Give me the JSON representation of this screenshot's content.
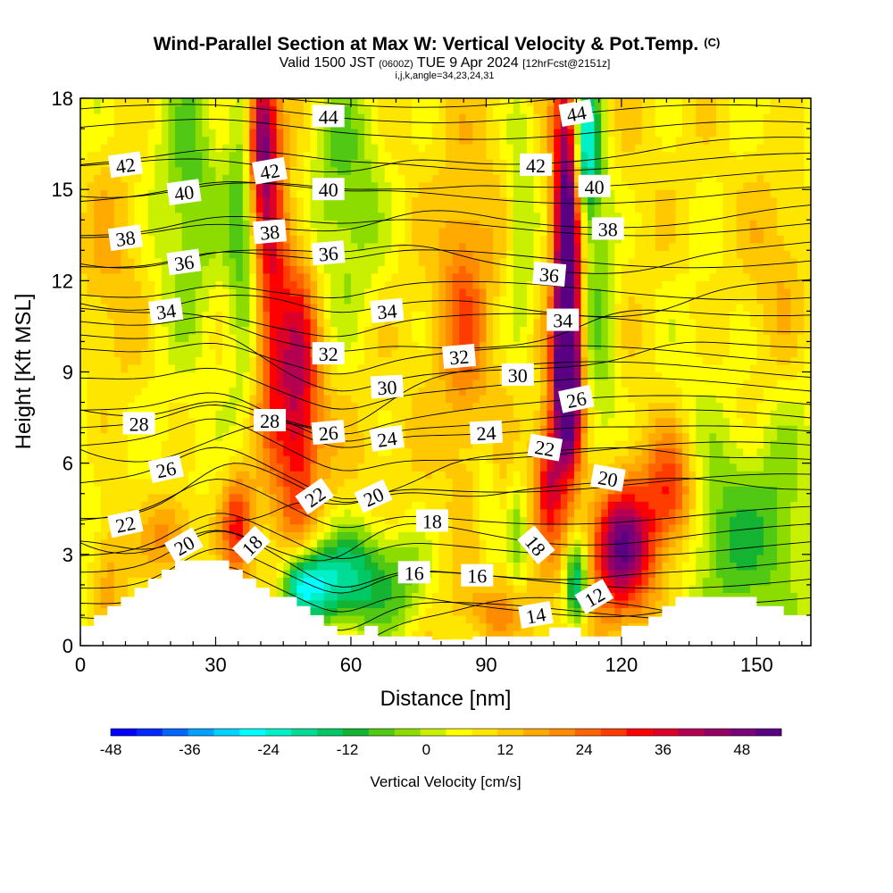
{
  "header": {
    "title_main": "Wind-Parallel Section at Max W: Vertical Velocity & Pot.Temp.",
    "title_mark": "(C)",
    "valid_prefix": "Valid 1500 JST",
    "valid_zulu": "(0600Z)",
    "valid_date": "TUE 9 Apr 2024",
    "valid_fcst": "[12hrFcst@2151z]",
    "indices": "i,j,k,angle=34,23,24,31"
  },
  "chart_data": {
    "type": "heatmap",
    "title": "Wind-Parallel Section at Max W: Vertical Velocity & Pot.Temp.",
    "xlabel": "Distance [nm]",
    "ylabel": "Height [Kft MSL]",
    "xlim": [
      0,
      162
    ],
    "ylim": [
      0,
      18
    ],
    "x_ticks": [
      0,
      30,
      60,
      90,
      120,
      150
    ],
    "y_ticks": [
      0,
      3,
      6,
      9,
      12,
      15,
      18
    ],
    "colorbar": {
      "label": "Vertical Velocity [cm/s]",
      "min": -48,
      "max": 54,
      "step": 4,
      "tick_values": [
        -48,
        -36,
        -24,
        -12,
        0,
        12,
        24,
        36,
        48
      ],
      "colors": [
        "#0000ff",
        "#0028ff",
        "#0064ff",
        "#00a0ff",
        "#00d2ff",
        "#00ffff",
        "#00f0c8",
        "#00dc96",
        "#00c864",
        "#14b432",
        "#50c814",
        "#8cdc00",
        "#c8f000",
        "#ffff00",
        "#ffe600",
        "#ffc800",
        "#ffaa00",
        "#ff8c00",
        "#ff6400",
        "#ff3c00",
        "#ff0000",
        "#dc0028",
        "#b40050",
        "#960064",
        "#780078",
        "#5a0082"
      ]
    },
    "terrain_kft": [
      [
        0,
        0.65
      ],
      [
        3,
        0.65
      ],
      [
        3,
        1.0
      ],
      [
        6,
        1.0
      ],
      [
        6,
        1.3
      ],
      [
        9,
        1.3
      ],
      [
        9,
        1.6
      ],
      [
        12,
        1.6
      ],
      [
        12,
        1.9
      ],
      [
        15,
        1.9
      ],
      [
        15,
        2.2
      ],
      [
        18,
        2.2
      ],
      [
        18,
        2.5
      ],
      [
        21,
        2.5
      ],
      [
        21,
        2.8
      ],
      [
        30,
        2.8
      ],
      [
        33,
        2.8
      ],
      [
        33,
        2.5
      ],
      [
        36,
        2.5
      ],
      [
        36,
        2.2
      ],
      [
        39,
        2.2
      ],
      [
        39,
        1.9
      ],
      [
        42,
        1.9
      ],
      [
        42,
        1.6
      ],
      [
        45,
        1.6
      ],
      [
        48,
        1.6
      ],
      [
        48,
        1.3
      ],
      [
        51,
        1.3
      ],
      [
        51,
        1.0
      ],
      [
        54,
        1.0
      ],
      [
        54,
        0.65
      ],
      [
        57,
        0.65
      ],
      [
        57,
        0.35
      ],
      [
        60,
        0.35
      ],
      [
        63,
        0.35
      ],
      [
        63,
        0.65
      ],
      [
        66,
        0.65
      ],
      [
        66,
        0.3
      ],
      [
        75,
        0.3
      ],
      [
        78,
        0.3
      ],
      [
        78,
        0.2
      ],
      [
        87,
        0.2
      ],
      [
        87,
        0.3
      ],
      [
        104,
        0.3
      ],
      [
        104,
        0.6
      ],
      [
        108,
        0.6
      ],
      [
        111,
        0.6
      ],
      [
        111,
        0.3
      ],
      [
        120,
        0.3
      ],
      [
        120,
        0.65
      ],
      [
        126,
        0.65
      ],
      [
        126,
        0.95
      ],
      [
        129,
        0.95
      ],
      [
        129,
        1.3
      ],
      [
        132,
        1.3
      ],
      [
        132,
        1.6
      ],
      [
        138,
        1.6
      ],
      [
        150,
        1.6
      ],
      [
        150,
        1.3
      ],
      [
        156,
        1.3
      ],
      [
        156,
        1.0
      ],
      [
        162,
        1.0
      ]
    ],
    "w_field": {
      "base": [
        {
          "x": 0,
          "w": 4
        },
        {
          "x": 10,
          "w": 8
        },
        {
          "x": 25,
          "w": 6
        },
        {
          "x": 50,
          "w": 14
        },
        {
          "x": 80,
          "w": 10
        },
        {
          "x": 100,
          "w": 12
        },
        {
          "x": 135,
          "w": 10
        },
        {
          "x": 162,
          "w": 4
        }
      ],
      "cells": [
        {
          "x": 48,
          "y": 8.5,
          "sx": 3.5,
          "sy": 3.2,
          "w": 30
        },
        {
          "x": 42,
          "y": 13,
          "sx": 2.5,
          "sy": 4,
          "w": 22
        },
        {
          "x": 40,
          "y": 16.8,
          "sx": 2.2,
          "sy": 1.6,
          "w": 34
        },
        {
          "x": 108,
          "y": 13,
          "sx": 2.0,
          "sy": 4.2,
          "w": 56
        },
        {
          "x": 108,
          "y": 8.5,
          "sx": 2.2,
          "sy": 1.6,
          "w": 38
        },
        {
          "x": 120,
          "y": 3.2,
          "sx": 5,
          "sy": 1.5,
          "w": 40
        },
        {
          "x": 131,
          "y": 5,
          "sx": 4,
          "sy": 1.4,
          "w": 24
        },
        {
          "x": 104,
          "y": 5.5,
          "sx": 2.2,
          "sy": 1.4,
          "w": 26
        },
        {
          "x": 85,
          "y": 11,
          "sx": 4,
          "sy": 3,
          "w": 16
        },
        {
          "x": 35,
          "y": 4,
          "sx": 2.5,
          "sy": 1.2,
          "w": 24
        },
        {
          "x": 20,
          "y": 3.6,
          "sx": 4,
          "sy": 1,
          "w": 16
        },
        {
          "x": 6,
          "y": 2.5,
          "sx": 3,
          "sy": 1.5,
          "w": 12
        },
        {
          "x": 5,
          "y": 12.5,
          "sx": 6,
          "sy": 3,
          "w": 10
        },
        {
          "x": 155,
          "y": 12.5,
          "sx": 6,
          "sy": 3,
          "w": 10
        },
        {
          "x": 92,
          "y": 1.2,
          "sx": 6,
          "sy": 0.6,
          "w": 10
        },
        {
          "x": 52,
          "y": 2.0,
          "sx": 4,
          "sy": 1,
          "w": -30
        },
        {
          "x": 62,
          "y": 2.2,
          "sx": 6,
          "sy": 1.3,
          "w": -26
        },
        {
          "x": 48,
          "y": 2.0,
          "sx": 2.5,
          "sy": 0.7,
          "w": -20
        },
        {
          "x": 72,
          "y": 2.0,
          "sx": 4,
          "sy": 1.2,
          "w": -10
        },
        {
          "x": 58,
          "y": 15,
          "sx": 7,
          "sy": 3.5,
          "w": -18
        },
        {
          "x": 36,
          "y": 14,
          "sx": 2.5,
          "sy": 4,
          "w": -16
        },
        {
          "x": 24,
          "y": 15,
          "sx": 5,
          "sy": 3,
          "w": -12
        },
        {
          "x": 112,
          "y": 16.5,
          "sx": 2.2,
          "sy": 1.8,
          "w": -34
        },
        {
          "x": 115,
          "y": 11,
          "sx": 3,
          "sy": 4,
          "w": -14
        },
        {
          "x": 98,
          "y": 14,
          "sx": 2.5,
          "sy": 3.5,
          "w": -12
        },
        {
          "x": 110,
          "y": 2.0,
          "sx": 1.8,
          "sy": 1.0,
          "w": -32
        },
        {
          "x": 97,
          "y": 3.5,
          "sx": 1.5,
          "sy": 1.5,
          "w": -12
        },
        {
          "x": 90,
          "y": 5,
          "sx": 1.5,
          "sy": 1.5,
          "w": -8
        },
        {
          "x": 143,
          "y": 3.5,
          "sx": 7,
          "sy": 2.2,
          "w": -16
        },
        {
          "x": 155,
          "y": 4,
          "sx": 4,
          "sy": 2.5,
          "w": -8
        },
        {
          "x": 135,
          "y": 9,
          "sx": 5,
          "sy": 3,
          "w": -4
        }
      ]
    },
    "theta_levels": [
      12,
      13,
      14,
      15,
      16,
      17,
      18,
      19,
      20,
      21,
      22,
      23,
      24,
      25,
      26,
      27,
      28,
      29,
      30,
      31,
      32,
      33,
      34,
      35,
      36,
      37,
      38,
      39,
      40,
      41,
      42,
      43,
      44,
      45
    ],
    "contour_labels": [
      {
        "text": "44",
        "x": 55,
        "y": 17.4,
        "angle": 0
      },
      {
        "text": "44",
        "x": 110,
        "y": 17.5,
        "angle": -10
      },
      {
        "text": "42",
        "x": 10,
        "y": 15.8,
        "angle": -8
      },
      {
        "text": "42",
        "x": 42,
        "y": 15.6,
        "angle": -10
      },
      {
        "text": "42",
        "x": 101,
        "y": 15.8,
        "angle": 0
      },
      {
        "text": "40",
        "x": 23,
        "y": 14.9,
        "angle": -8
      },
      {
        "text": "40",
        "x": 55,
        "y": 15.0,
        "angle": 0
      },
      {
        "text": "40",
        "x": 114,
        "y": 15.1,
        "angle": 0
      },
      {
        "text": "38",
        "x": 10,
        "y": 13.4,
        "angle": -8
      },
      {
        "text": "38",
        "x": 42,
        "y": 13.6,
        "angle": -5
      },
      {
        "text": "38",
        "x": 117,
        "y": 13.7,
        "angle": 0
      },
      {
        "text": "36",
        "x": 23,
        "y": 12.6,
        "angle": -8
      },
      {
        "text": "36",
        "x": 55,
        "y": 12.9,
        "angle": -5
      },
      {
        "text": "36",
        "x": 104,
        "y": 12.2,
        "angle": 5
      },
      {
        "text": "34",
        "x": 19,
        "y": 11.0,
        "angle": -8
      },
      {
        "text": "34",
        "x": 68,
        "y": 11.0,
        "angle": -5
      },
      {
        "text": "34",
        "x": 107,
        "y": 10.7,
        "angle": 0
      },
      {
        "text": "32",
        "x": 55,
        "y": 9.6,
        "angle": 0
      },
      {
        "text": "32",
        "x": 84,
        "y": 9.5,
        "angle": -5
      },
      {
        "text": "30",
        "x": 68,
        "y": 8.5,
        "angle": -3
      },
      {
        "text": "30",
        "x": 97,
        "y": 8.9,
        "angle": 0
      },
      {
        "text": "28",
        "x": 13,
        "y": 7.3,
        "angle": 0
      },
      {
        "text": "28",
        "x": 42,
        "y": 7.4,
        "angle": 0
      },
      {
        "text": "26",
        "x": 19,
        "y": 5.8,
        "angle": -12
      },
      {
        "text": "26",
        "x": 55,
        "y": 7.0,
        "angle": -5
      },
      {
        "text": "26",
        "x": 110,
        "y": 8.1,
        "angle": -12
      },
      {
        "text": "24",
        "x": 68,
        "y": 6.8,
        "angle": -8
      },
      {
        "text": "24",
        "x": 90,
        "y": 7.0,
        "angle": -3
      },
      {
        "text": "22",
        "x": 10,
        "y": 4.0,
        "angle": -12
      },
      {
        "text": "22",
        "x": 52,
        "y": 4.9,
        "angle": -35
      },
      {
        "text": "22",
        "x": 103,
        "y": 6.5,
        "angle": 10
      },
      {
        "text": "20",
        "x": 23,
        "y": 3.3,
        "angle": -30
      },
      {
        "text": "20",
        "x": 65,
        "y": 4.9,
        "angle": -25
      },
      {
        "text": "20",
        "x": 117,
        "y": 5.5,
        "angle": 10
      },
      {
        "text": "18",
        "x": 38,
        "y": 3.3,
        "angle": -45
      },
      {
        "text": "18",
        "x": 78,
        "y": 4.1,
        "angle": 0
      },
      {
        "text": "18",
        "x": 101,
        "y": 3.3,
        "angle": 50
      },
      {
        "text": "16",
        "x": 74,
        "y": 2.4,
        "angle": 0
      },
      {
        "text": "16",
        "x": 88,
        "y": 2.3,
        "angle": 0
      },
      {
        "text": "14",
        "x": 101,
        "y": 1.0,
        "angle": -10
      },
      {
        "text": "12",
        "x": 114,
        "y": 1.6,
        "angle": -30
      }
    ]
  }
}
